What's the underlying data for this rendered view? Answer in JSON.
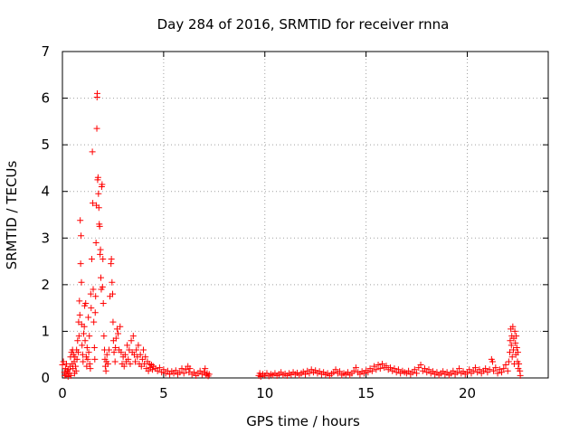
{
  "chart_data": {
    "type": "scatter",
    "title": "Day 284 of 2016, SRMTID for receiver rnna",
    "xlabel": "GPS time / hours",
    "ylabel": "SRMTID / TECUs",
    "xlim": [
      0,
      24
    ],
    "ylim": [
      0,
      7
    ],
    "xticks": [
      "0",
      "5",
      "10",
      "15",
      "20"
    ],
    "yticks": [
      "0",
      "1",
      "2",
      "3",
      "4",
      "5",
      "6",
      "7"
    ],
    "grid": true,
    "marker": "plus",
    "series": [
      {
        "name": "SRMTID",
        "color": "#ff0000",
        "points": [
          [
            0.0,
            0.28
          ],
          [
            0.05,
            0.35
          ],
          [
            0.1,
            0.12
          ],
          [
            0.12,
            0.05
          ],
          [
            0.15,
            0.2
          ],
          [
            0.18,
            0.08
          ],
          [
            0.2,
            0.3
          ],
          [
            0.25,
            0.15
          ],
          [
            0.28,
            0.03
          ],
          [
            0.3,
            0.18
          ],
          [
            0.35,
            0.1
          ],
          [
            0.38,
            0.25
          ],
          [
            0.4,
            0.45
          ],
          [
            0.42,
            0.05
          ],
          [
            0.45,
            0.55
          ],
          [
            0.48,
            0.3
          ],
          [
            0.5,
            0.6
          ],
          [
            0.52,
            0.2
          ],
          [
            0.55,
            0.5
          ],
          [
            0.58,
            0.35
          ],
          [
            0.6,
            0.1
          ],
          [
            0.62,
            0.45
          ],
          [
            0.65,
            0.25
          ],
          [
            0.68,
            0.15
          ],
          [
            0.7,
            0.6
          ],
          [
            0.72,
            0.4
          ],
          [
            0.75,
            0.8
          ],
          [
            0.78,
            0.55
          ],
          [
            0.8,
            1.2
          ],
          [
            0.82,
            0.9
          ],
          [
            0.84,
            1.65
          ],
          [
            0.86,
            1.35
          ],
          [
            0.88,
            3.38
          ],
          [
            0.9,
            2.45
          ],
          [
            0.92,
            3.05
          ],
          [
            0.94,
            2.05
          ],
          [
            0.95,
            1.15
          ],
          [
            0.97,
            0.7
          ],
          [
            1.0,
            0.5
          ],
          [
            1.02,
            0.35
          ],
          [
            1.05,
            0.95
          ],
          [
            1.08,
            1.1
          ],
          [
            1.1,
            1.55
          ],
          [
            1.12,
            0.8
          ],
          [
            1.15,
            1.6
          ],
          [
            1.18,
            0.45
          ],
          [
            1.2,
            0.25
          ],
          [
            1.22,
            0.65
          ],
          [
            1.25,
            0.4
          ],
          [
            1.28,
            1.3
          ],
          [
            1.3,
            0.55
          ],
          [
            1.33,
            0.9
          ],
          [
            1.35,
            0.3
          ],
          [
            1.38,
            0.2
          ],
          [
            1.4,
            1.8
          ],
          [
            1.42,
            1.5
          ],
          [
            1.45,
            2.55
          ],
          [
            1.48,
            4.85
          ],
          [
            1.5,
            3.75
          ],
          [
            1.52,
            1.9
          ],
          [
            1.55,
            1.2
          ],
          [
            1.58,
            0.65
          ],
          [
            1.6,
            0.4
          ],
          [
            1.62,
            1.4
          ],
          [
            1.64,
            1.75
          ],
          [
            1.66,
            2.9
          ],
          [
            1.68,
            3.7
          ],
          [
            1.7,
            5.35
          ],
          [
            1.71,
            6.02
          ],
          [
            1.72,
            6.1
          ],
          [
            1.74,
            4.25
          ],
          [
            1.76,
            4.3
          ],
          [
            1.78,
            3.95
          ],
          [
            1.8,
            3.65
          ],
          [
            1.82,
            3.3
          ],
          [
            1.84,
            3.25
          ],
          [
            1.86,
            2.65
          ],
          [
            1.88,
            2.75
          ],
          [
            1.9,
            2.15
          ],
          [
            1.92,
            1.9
          ],
          [
            1.94,
            4.1
          ],
          [
            1.96,
            4.15
          ],
          [
            1.98,
            1.95
          ],
          [
            2.0,
            2.55
          ],
          [
            2.02,
            1.6
          ],
          [
            2.05,
            0.9
          ],
          [
            2.08,
            0.6
          ],
          [
            2.1,
            0.4
          ],
          [
            2.12,
            0.25
          ],
          [
            2.15,
            0.15
          ],
          [
            2.18,
            0.35
          ],
          [
            2.2,
            0.5
          ],
          [
            2.25,
            0.3
          ],
          [
            2.3,
            0.6
          ],
          [
            2.35,
            1.75
          ],
          [
            2.4,
            2.45
          ],
          [
            2.42,
            2.55
          ],
          [
            2.45,
            2.05
          ],
          [
            2.48,
            1.8
          ],
          [
            2.5,
            1.2
          ],
          [
            2.52,
            0.8
          ],
          [
            2.55,
            0.55
          ],
          [
            2.6,
            0.35
          ],
          [
            2.62,
            0.65
          ],
          [
            2.65,
            0.85
          ],
          [
            2.7,
            1.05
          ],
          [
            2.75,
            0.95
          ],
          [
            2.8,
            0.6
          ],
          [
            2.85,
            1.1
          ],
          [
            2.9,
            0.55
          ],
          [
            2.95,
            0.3
          ],
          [
            3.0,
            0.45
          ],
          [
            3.05,
            0.25
          ],
          [
            3.1,
            0.5
          ],
          [
            3.15,
            0.35
          ],
          [
            3.2,
            0.7
          ],
          [
            3.25,
            0.4
          ],
          [
            3.3,
            0.6
          ],
          [
            3.35,
            0.3
          ],
          [
            3.4,
            0.8
          ],
          [
            3.45,
            0.55
          ],
          [
            3.5,
            0.9
          ],
          [
            3.55,
            0.5
          ],
          [
            3.6,
            0.35
          ],
          [
            3.65,
            0.6
          ],
          [
            3.7,
            0.45
          ],
          [
            3.75,
            0.7
          ],
          [
            3.8,
            0.3
          ],
          [
            3.85,
            0.5
          ],
          [
            3.9,
            0.25
          ],
          [
            3.95,
            0.4
          ],
          [
            4.0,
            0.6
          ],
          [
            4.05,
            0.3
          ],
          [
            4.1,
            0.45
          ],
          [
            4.15,
            0.2
          ],
          [
            4.2,
            0.35
          ],
          [
            4.25,
            0.15
          ],
          [
            4.3,
            0.3
          ],
          [
            4.35,
            0.22
          ],
          [
            4.4,
            0.28
          ],
          [
            4.45,
            0.18
          ],
          [
            4.5,
            0.25
          ],
          [
            4.6,
            0.2
          ],
          [
            4.7,
            0.15
          ],
          [
            4.8,
            0.22
          ],
          [
            4.9,
            0.12
          ],
          [
            5.0,
            0.18
          ],
          [
            5.1,
            0.1
          ],
          [
            5.2,
            0.15
          ],
          [
            5.3,
            0.08
          ],
          [
            5.4,
            0.14
          ],
          [
            5.5,
            0.1
          ],
          [
            5.6,
            0.16
          ],
          [
            5.7,
            0.08
          ],
          [
            5.8,
            0.12
          ],
          [
            5.9,
            0.2
          ],
          [
            6.0,
            0.1
          ],
          [
            6.1,
            0.18
          ],
          [
            6.2,
            0.25
          ],
          [
            6.25,
            0.12
          ],
          [
            6.3,
            0.2
          ],
          [
            6.4,
            0.08
          ],
          [
            6.5,
            0.12
          ],
          [
            6.6,
            0.05
          ],
          [
            6.7,
            0.1
          ],
          [
            6.8,
            0.15
          ],
          [
            6.9,
            0.08
          ],
          [
            7.0,
            0.12
          ],
          [
            7.05,
            0.2
          ],
          [
            7.1,
            0.06
          ],
          [
            7.15,
            0.1
          ],
          [
            7.2,
            0.04
          ],
          [
            7.25,
            0.08
          ],
          [
            9.7,
            0.05
          ],
          [
            9.75,
            0.1
          ],
          [
            9.8,
            0.03
          ],
          [
            9.9,
            0.08
          ],
          [
            10.0,
            0.05
          ],
          [
            10.1,
            0.1
          ],
          [
            10.2,
            0.04
          ],
          [
            10.3,
            0.08
          ],
          [
            10.4,
            0.06
          ],
          [
            10.5,
            0.1
          ],
          [
            10.6,
            0.05
          ],
          [
            10.7,
            0.08
          ],
          [
            10.8,
            0.12
          ],
          [
            10.9,
            0.06
          ],
          [
            11.0,
            0.09
          ],
          [
            11.1,
            0.05
          ],
          [
            11.2,
            0.1
          ],
          [
            11.3,
            0.07
          ],
          [
            11.4,
            0.12
          ],
          [
            11.5,
            0.08
          ],
          [
            11.6,
            0.11
          ],
          [
            11.7,
            0.06
          ],
          [
            11.8,
            0.1
          ],
          [
            11.9,
            0.13
          ],
          [
            12.0,
            0.08
          ],
          [
            12.1,
            0.15
          ],
          [
            12.2,
            0.1
          ],
          [
            12.3,
            0.18
          ],
          [
            12.4,
            0.12
          ],
          [
            12.5,
            0.16
          ],
          [
            12.6,
            0.1
          ],
          [
            12.7,
            0.14
          ],
          [
            12.8,
            0.08
          ],
          [
            12.9,
            0.12
          ],
          [
            13.0,
            0.07
          ],
          [
            13.1,
            0.1
          ],
          [
            13.2,
            0.05
          ],
          [
            13.3,
            0.09
          ],
          [
            13.4,
            0.12
          ],
          [
            13.5,
            0.18
          ],
          [
            13.6,
            0.1
          ],
          [
            13.7,
            0.14
          ],
          [
            13.8,
            0.06
          ],
          [
            13.9,
            0.1
          ],
          [
            14.0,
            0.08
          ],
          [
            14.1,
            0.12
          ],
          [
            14.2,
            0.06
          ],
          [
            14.3,
            0.1
          ],
          [
            14.4,
            0.15
          ],
          [
            14.5,
            0.22
          ],
          [
            14.6,
            0.12
          ],
          [
            14.7,
            0.08
          ],
          [
            14.8,
            0.14
          ],
          [
            14.9,
            0.1
          ],
          [
            15.0,
            0.16
          ],
          [
            15.1,
            0.12
          ],
          [
            15.2,
            0.2
          ],
          [
            15.3,
            0.15
          ],
          [
            15.4,
            0.25
          ],
          [
            15.5,
            0.18
          ],
          [
            15.6,
            0.28
          ],
          [
            15.7,
            0.2
          ],
          [
            15.8,
            0.3
          ],
          [
            15.9,
            0.22
          ],
          [
            16.0,
            0.26
          ],
          [
            16.1,
            0.18
          ],
          [
            16.2,
            0.22
          ],
          [
            16.3,
            0.15
          ],
          [
            16.4,
            0.2
          ],
          [
            16.5,
            0.12
          ],
          [
            16.6,
            0.18
          ],
          [
            16.7,
            0.1
          ],
          [
            16.8,
            0.15
          ],
          [
            16.9,
            0.12
          ],
          [
            17.0,
            0.1
          ],
          [
            17.1,
            0.15
          ],
          [
            17.2,
            0.08
          ],
          [
            17.3,
            0.12
          ],
          [
            17.4,
            0.18
          ],
          [
            17.5,
            0.1
          ],
          [
            17.6,
            0.22
          ],
          [
            17.7,
            0.28
          ],
          [
            17.8,
            0.15
          ],
          [
            17.9,
            0.2
          ],
          [
            18.0,
            0.12
          ],
          [
            18.1,
            0.18
          ],
          [
            18.2,
            0.1
          ],
          [
            18.3,
            0.14
          ],
          [
            18.4,
            0.08
          ],
          [
            18.5,
            0.12
          ],
          [
            18.6,
            0.06
          ],
          [
            18.7,
            0.1
          ],
          [
            18.8,
            0.14
          ],
          [
            18.9,
            0.08
          ],
          [
            19.0,
            0.12
          ],
          [
            19.1,
            0.06
          ],
          [
            19.2,
            0.1
          ],
          [
            19.3,
            0.15
          ],
          [
            19.4,
            0.08
          ],
          [
            19.5,
            0.12
          ],
          [
            19.6,
            0.2
          ],
          [
            19.7,
            0.1
          ],
          [
            19.8,
            0.14
          ],
          [
            19.9,
            0.08
          ],
          [
            20.0,
            0.12
          ],
          [
            20.1,
            0.18
          ],
          [
            20.2,
            0.1
          ],
          [
            20.3,
            0.15
          ],
          [
            20.4,
            0.22
          ],
          [
            20.5,
            0.12
          ],
          [
            20.6,
            0.18
          ],
          [
            20.7,
            0.1
          ],
          [
            20.8,
            0.15
          ],
          [
            20.9,
            0.2
          ],
          [
            21.0,
            0.12
          ],
          [
            21.1,
            0.18
          ],
          [
            21.2,
            0.4
          ],
          [
            21.25,
            0.35
          ],
          [
            21.3,
            0.15
          ],
          [
            21.4,
            0.22
          ],
          [
            21.5,
            0.1
          ],
          [
            21.6,
            0.18
          ],
          [
            21.7,
            0.12
          ],
          [
            21.8,
            0.2
          ],
          [
            21.9,
            0.28
          ],
          [
            22.0,
            0.15
          ],
          [
            22.05,
            0.35
          ],
          [
            22.1,
            0.55
          ],
          [
            22.12,
            0.8
          ],
          [
            22.15,
            1.05
          ],
          [
            22.18,
            0.7
          ],
          [
            22.2,
            0.9
          ],
          [
            22.22,
            0.45
          ],
          [
            22.25,
            1.1
          ],
          [
            22.28,
            0.6
          ],
          [
            22.3,
            0.85
          ],
          [
            22.32,
            0.3
          ],
          [
            22.35,
            1.0
          ],
          [
            22.38,
            0.75
          ],
          [
            22.4,
            0.5
          ],
          [
            22.42,
            0.9
          ],
          [
            22.45,
            0.65
          ],
          [
            22.48,
            0.35
          ],
          [
            22.5,
            0.55
          ],
          [
            22.52,
            0.2
          ],
          [
            22.55,
            0.3
          ],
          [
            22.6,
            0.15
          ],
          [
            22.62,
            0.05
          ]
        ]
      }
    ]
  }
}
